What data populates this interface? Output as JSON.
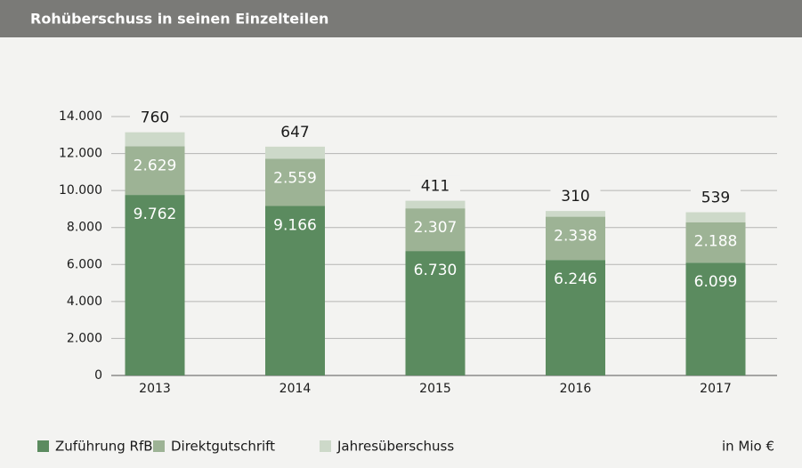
{
  "chart_data": {
    "type": "stacked_bar",
    "title": "Rohüberschuss in seinen Einzelteilen",
    "unit_label": "in Mio €",
    "categories": [
      "2013",
      "2014",
      "2015",
      "2016",
      "2017"
    ],
    "series": [
      {
        "name": "Zuführung RfB",
        "color": "#5b8b5f",
        "values": [
          9762,
          9166,
          6730,
          6246,
          6099
        ],
        "value_labels": [
          "9.762",
          "9.166",
          "6.730",
          "6.246",
          "6.099"
        ]
      },
      {
        "name": "Direktgutschrift",
        "color": "#9db395",
        "values": [
          2629,
          2559,
          2307,
          2338,
          2188
        ],
        "value_labels": [
          "2.629",
          "2.559",
          "2.307",
          "2.338",
          "2.188"
        ]
      },
      {
        "name": "Jahresüberschuss",
        "color": "#cdd9c9",
        "values": [
          760,
          647,
          411,
          310,
          539
        ]
      }
    ],
    "ylim": [
      0,
      14000
    ],
    "yticks": [
      0,
      {
        "value": 2000,
        "label": "2.000"
      },
      {
        "value": 4000,
        "label": "4.000"
      },
      {
        "value": 6000,
        "label": "6.000"
      },
      {
        "value": 8000,
        "label": "8.000"
      },
      {
        "value": 10000,
        "label": "10.000"
      },
      {
        "value": 12000,
        "label": "12.000"
      },
      {
        "value": 14000,
        "label": "14.000"
      }
    ],
    "grid": true
  }
}
